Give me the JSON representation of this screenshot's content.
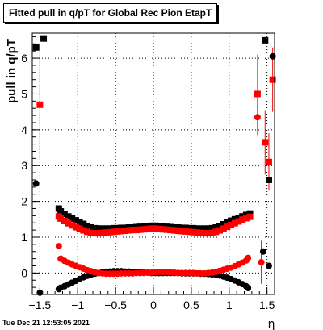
{
  "chart_data": {
    "type": "scatter",
    "title": "Fitted pull in q/pT for Global Rec Pion EtapT",
    "xlabel": "η",
    "ylabel": "pull in q/pT",
    "xlim": [
      -1.6,
      1.6
    ],
    "ylim": [
      -0.6,
      6.7
    ],
    "xticks": [
      -1.5,
      -1,
      -0.5,
      0,
      0.5,
      1,
      1.5
    ],
    "xtick_labels": [
      "−1.5",
      "−1",
      "−0.5",
      "0",
      "0.5",
      "1",
      "1.5"
    ],
    "yticks": [
      0,
      1,
      2,
      3,
      4,
      5,
      6
    ],
    "ytick_labels": [
      "0",
      "1",
      "2",
      "3",
      "4",
      "5",
      "6"
    ],
    "grid": true,
    "series": [
      {
        "marker": "square",
        "color": "#000000",
        "points": [
          [
            -1.55,
            6.3,
            0
          ],
          [
            -1.45,
            6.55,
            0
          ],
          [
            -1.25,
            1.8,
            0
          ],
          [
            -1.225,
            1.72,
            0
          ],
          [
            -1.175,
            1.65,
            0
          ],
          [
            -1.125,
            1.58,
            0
          ],
          [
            -1.075,
            1.52,
            0
          ],
          [
            -1.025,
            1.47,
            0
          ],
          [
            -0.975,
            1.42,
            0
          ],
          [
            -0.925,
            1.37,
            0
          ],
          [
            -0.875,
            1.31,
            0
          ],
          [
            -0.825,
            1.27,
            0
          ],
          [
            -0.775,
            1.25,
            0
          ],
          [
            -0.725,
            1.24,
            0
          ],
          [
            -0.675,
            1.24,
            0
          ],
          [
            -0.625,
            1.24,
            0
          ],
          [
            -0.575,
            1.24,
            0
          ],
          [
            -0.525,
            1.25,
            0
          ],
          [
            -0.475,
            1.25,
            0
          ],
          [
            -0.425,
            1.26,
            0
          ],
          [
            -0.375,
            1.26,
            0
          ],
          [
            -0.325,
            1.27,
            0
          ],
          [
            -0.275,
            1.27,
            0
          ],
          [
            -0.225,
            1.28,
            0
          ],
          [
            -0.175,
            1.29,
            0
          ],
          [
            -0.125,
            1.3,
            0
          ],
          [
            -0.075,
            1.31,
            0
          ],
          [
            -0.025,
            1.32,
            0
          ],
          [
            0.025,
            1.32,
            0
          ],
          [
            0.075,
            1.31,
            0
          ],
          [
            0.125,
            1.3,
            0
          ],
          [
            0.175,
            1.29,
            0
          ],
          [
            0.225,
            1.28,
            0
          ],
          [
            0.275,
            1.27,
            0
          ],
          [
            0.325,
            1.27,
            0
          ],
          [
            0.375,
            1.26,
            0
          ],
          [
            0.425,
            1.26,
            0
          ],
          [
            0.475,
            1.25,
            0
          ],
          [
            0.525,
            1.25,
            0
          ],
          [
            0.575,
            1.24,
            0
          ],
          [
            0.625,
            1.24,
            0
          ],
          [
            0.675,
            1.24,
            0
          ],
          [
            0.725,
            1.24,
            0
          ],
          [
            0.775,
            1.25,
            0
          ],
          [
            0.825,
            1.27,
            0
          ],
          [
            0.875,
            1.31,
            0
          ],
          [
            0.925,
            1.36,
            0
          ],
          [
            0.975,
            1.41,
            0
          ],
          [
            1.025,
            1.46,
            0
          ],
          [
            1.075,
            1.5,
            0
          ],
          [
            1.125,
            1.54,
            0
          ],
          [
            1.175,
            1.58,
            0
          ],
          [
            1.225,
            1.62,
            0
          ],
          [
            1.275,
            1.66,
            0
          ],
          [
            1.475,
            6.5,
            0
          ],
          [
            1.525,
            2.6,
            0
          ]
        ]
      },
      {
        "marker": "circle",
        "color": "#000000",
        "points": [
          [
            -1.55,
            2.5,
            0
          ],
          [
            -1.5,
            -0.55,
            0
          ],
          [
            -1.25,
            -0.45,
            0
          ],
          [
            -1.225,
            -0.41,
            0
          ],
          [
            -1.175,
            -0.37,
            0
          ],
          [
            -1.125,
            -0.32,
            0
          ],
          [
            -1.075,
            -0.27,
            0
          ],
          [
            -1.025,
            -0.22,
            0
          ],
          [
            -0.975,
            -0.17,
            0
          ],
          [
            -0.925,
            -0.12,
            0
          ],
          [
            -0.875,
            -0.08,
            0
          ],
          [
            -0.825,
            -0.05,
            0
          ],
          [
            -0.775,
            -0.02,
            0
          ],
          [
            -0.725,
            0.0,
            0
          ],
          [
            -0.675,
            0.02,
            0
          ],
          [
            -0.625,
            0.03,
            0
          ],
          [
            -0.575,
            0.04,
            0
          ],
          [
            -0.525,
            0.05,
            0
          ],
          [
            -0.475,
            0.05,
            0
          ],
          [
            -0.425,
            0.05,
            0
          ],
          [
            -0.375,
            0.04,
            0
          ],
          [
            -0.325,
            0.04,
            0
          ],
          [
            -0.275,
            0.03,
            0
          ],
          [
            -0.225,
            0.02,
            0
          ],
          [
            -0.175,
            0.02,
            0
          ],
          [
            -0.125,
            0.01,
            0
          ],
          [
            -0.075,
            0.01,
            0
          ],
          [
            -0.025,
            0.0,
            0
          ],
          [
            0.025,
            0.0,
            0
          ],
          [
            0.075,
            0.0,
            0
          ],
          [
            0.125,
            0.0,
            0
          ],
          [
            0.175,
            0.0,
            0
          ],
          [
            0.225,
            0.0,
            0
          ],
          [
            0.275,
            0.0,
            0
          ],
          [
            0.325,
            0.0,
            0
          ],
          [
            0.375,
            -0.01,
            0
          ],
          [
            0.425,
            -0.01,
            0
          ],
          [
            0.475,
            -0.01,
            0
          ],
          [
            0.525,
            -0.01,
            0
          ],
          [
            0.575,
            -0.01,
            0
          ],
          [
            0.625,
            -0.02,
            0
          ],
          [
            0.675,
            -0.02,
            0
          ],
          [
            0.725,
            -0.03,
            0
          ],
          [
            0.775,
            -0.04,
            0
          ],
          [
            0.825,
            -0.05,
            0
          ],
          [
            0.875,
            -0.07,
            0
          ],
          [
            0.925,
            -0.1,
            0
          ],
          [
            0.975,
            -0.13,
            0
          ],
          [
            1.025,
            -0.17,
            0
          ],
          [
            1.075,
            -0.21,
            0
          ],
          [
            1.125,
            -0.26,
            0
          ],
          [
            1.175,
            -0.31,
            0
          ],
          [
            1.225,
            -0.37,
            0
          ],
          [
            1.25,
            -0.42,
            0
          ],
          [
            1.45,
            0.6,
            0
          ],
          [
            1.525,
            0.2,
            0
          ],
          [
            1.575,
            6.05,
            0
          ]
        ]
      },
      {
        "marker": "square",
        "color": "#ff0000",
        "points": [
          [
            -1.5,
            4.7,
            1.5
          ],
          [
            -1.25,
            1.58,
            0
          ],
          [
            -1.225,
            1.52,
            0
          ],
          [
            -1.175,
            1.45,
            0
          ],
          [
            -1.125,
            1.39,
            0
          ],
          [
            -1.075,
            1.33,
            0
          ],
          [
            -1.025,
            1.28,
            0
          ],
          [
            -0.975,
            1.24,
            0
          ],
          [
            -0.925,
            1.19,
            0
          ],
          [
            -0.875,
            1.15,
            0
          ],
          [
            -0.825,
            1.12,
            0
          ],
          [
            -0.775,
            1.11,
            0
          ],
          [
            -0.725,
            1.11,
            0
          ],
          [
            -0.675,
            1.12,
            0
          ],
          [
            -0.625,
            1.13,
            0
          ],
          [
            -0.575,
            1.14,
            0
          ],
          [
            -0.525,
            1.15,
            0
          ],
          [
            -0.475,
            1.16,
            0
          ],
          [
            -0.425,
            1.17,
            0
          ],
          [
            -0.375,
            1.18,
            0
          ],
          [
            -0.325,
            1.19,
            0
          ],
          [
            -0.275,
            1.2,
            0
          ],
          [
            -0.225,
            1.2,
            0
          ],
          [
            -0.175,
            1.21,
            0
          ],
          [
            -0.125,
            1.22,
            0
          ],
          [
            -0.075,
            1.23,
            0
          ],
          [
            -0.025,
            1.24,
            0
          ],
          [
            0.025,
            1.24,
            0
          ],
          [
            0.075,
            1.23,
            0
          ],
          [
            0.125,
            1.22,
            0
          ],
          [
            0.175,
            1.21,
            0
          ],
          [
            0.225,
            1.2,
            0
          ],
          [
            0.275,
            1.19,
            0
          ],
          [
            0.325,
            1.18,
            0
          ],
          [
            0.375,
            1.17,
            0
          ],
          [
            0.425,
            1.16,
            0
          ],
          [
            0.475,
            1.15,
            0
          ],
          [
            0.525,
            1.14,
            0
          ],
          [
            0.575,
            1.13,
            0
          ],
          [
            0.625,
            1.12,
            0
          ],
          [
            0.675,
            1.11,
            0
          ],
          [
            0.725,
            1.11,
            0
          ],
          [
            0.775,
            1.12,
            0
          ],
          [
            0.825,
            1.15,
            0
          ],
          [
            0.875,
            1.19,
            0
          ],
          [
            0.925,
            1.24,
            0
          ],
          [
            0.975,
            1.29,
            0
          ],
          [
            1.025,
            1.34,
            0
          ],
          [
            1.075,
            1.39,
            0
          ],
          [
            1.125,
            1.44,
            0
          ],
          [
            1.175,
            1.49,
            0
          ],
          [
            1.225,
            1.53,
            0
          ],
          [
            1.275,
            1.57,
            0
          ],
          [
            1.375,
            5.0,
            1.1
          ],
          [
            1.475,
            3.65,
            0.9
          ],
          [
            1.525,
            3.1,
            0.8
          ],
          [
            1.575,
            5.4,
            0.9
          ]
        ]
      },
      {
        "marker": "circle",
        "color": "#ff0000",
        "points": [
          [
            -1.25,
            0.75,
            0
          ],
          [
            -1.225,
            0.4,
            0
          ],
          [
            -1.175,
            0.34,
            0
          ],
          [
            -1.125,
            0.29,
            0
          ],
          [
            -1.075,
            0.24,
            0
          ],
          [
            -1.025,
            0.2,
            0
          ],
          [
            -0.975,
            0.16,
            0
          ],
          [
            -0.925,
            0.12,
            0
          ],
          [
            -0.875,
            0.08,
            0
          ],
          [
            -0.825,
            0.05,
            0
          ],
          [
            -0.775,
            0.02,
            0
          ],
          [
            -0.725,
            0.0,
            0
          ],
          [
            -0.675,
            -0.01,
            0
          ],
          [
            -0.625,
            -0.02,
            0
          ],
          [
            -0.575,
            -0.02,
            0
          ],
          [
            -0.525,
            -0.02,
            0
          ],
          [
            -0.475,
            -0.02,
            0
          ],
          [
            -0.425,
            -0.01,
            0
          ],
          [
            -0.375,
            -0.01,
            0
          ],
          [
            -0.325,
            -0.01,
            0
          ],
          [
            -0.275,
            -0.01,
            0
          ],
          [
            -0.225,
            0.0,
            0
          ],
          [
            -0.175,
            0.0,
            0
          ],
          [
            -0.125,
            0.0,
            0
          ],
          [
            -0.075,
            0.01,
            0
          ],
          [
            -0.025,
            0.01,
            0
          ],
          [
            0.025,
            0.02,
            0
          ],
          [
            0.075,
            0.03,
            0
          ],
          [
            0.125,
            0.03,
            0
          ],
          [
            0.175,
            0.03,
            0
          ],
          [
            0.225,
            0.02,
            0
          ],
          [
            0.275,
            0.01,
            0
          ],
          [
            0.325,
            0.0,
            0
          ],
          [
            0.375,
            0.0,
            0
          ],
          [
            0.425,
            0.0,
            0
          ],
          [
            0.475,
            0.0,
            0
          ],
          [
            0.525,
            0.0,
            0
          ],
          [
            0.575,
            -0.01,
            0
          ],
          [
            0.625,
            -0.01,
            0
          ],
          [
            0.675,
            -0.01,
            0
          ],
          [
            0.725,
            0.0,
            0
          ],
          [
            0.775,
            0.01,
            0
          ],
          [
            0.825,
            0.03,
            0
          ],
          [
            0.875,
            0.06,
            0
          ],
          [
            0.925,
            0.09,
            0
          ],
          [
            0.975,
            0.12,
            0
          ],
          [
            1.025,
            0.15,
            0
          ],
          [
            1.075,
            0.19,
            0
          ],
          [
            1.125,
            0.24,
            0
          ],
          [
            1.175,
            0.29,
            0
          ],
          [
            1.225,
            0.35,
            0
          ],
          [
            1.25,
            0.42,
            0
          ],
          [
            1.375,
            4.35,
            0.5
          ],
          [
            1.425,
            0.3,
            0.6
          ]
        ]
      }
    ]
  },
  "timestamp": "Tue Dec 21 12:53:05 2021"
}
